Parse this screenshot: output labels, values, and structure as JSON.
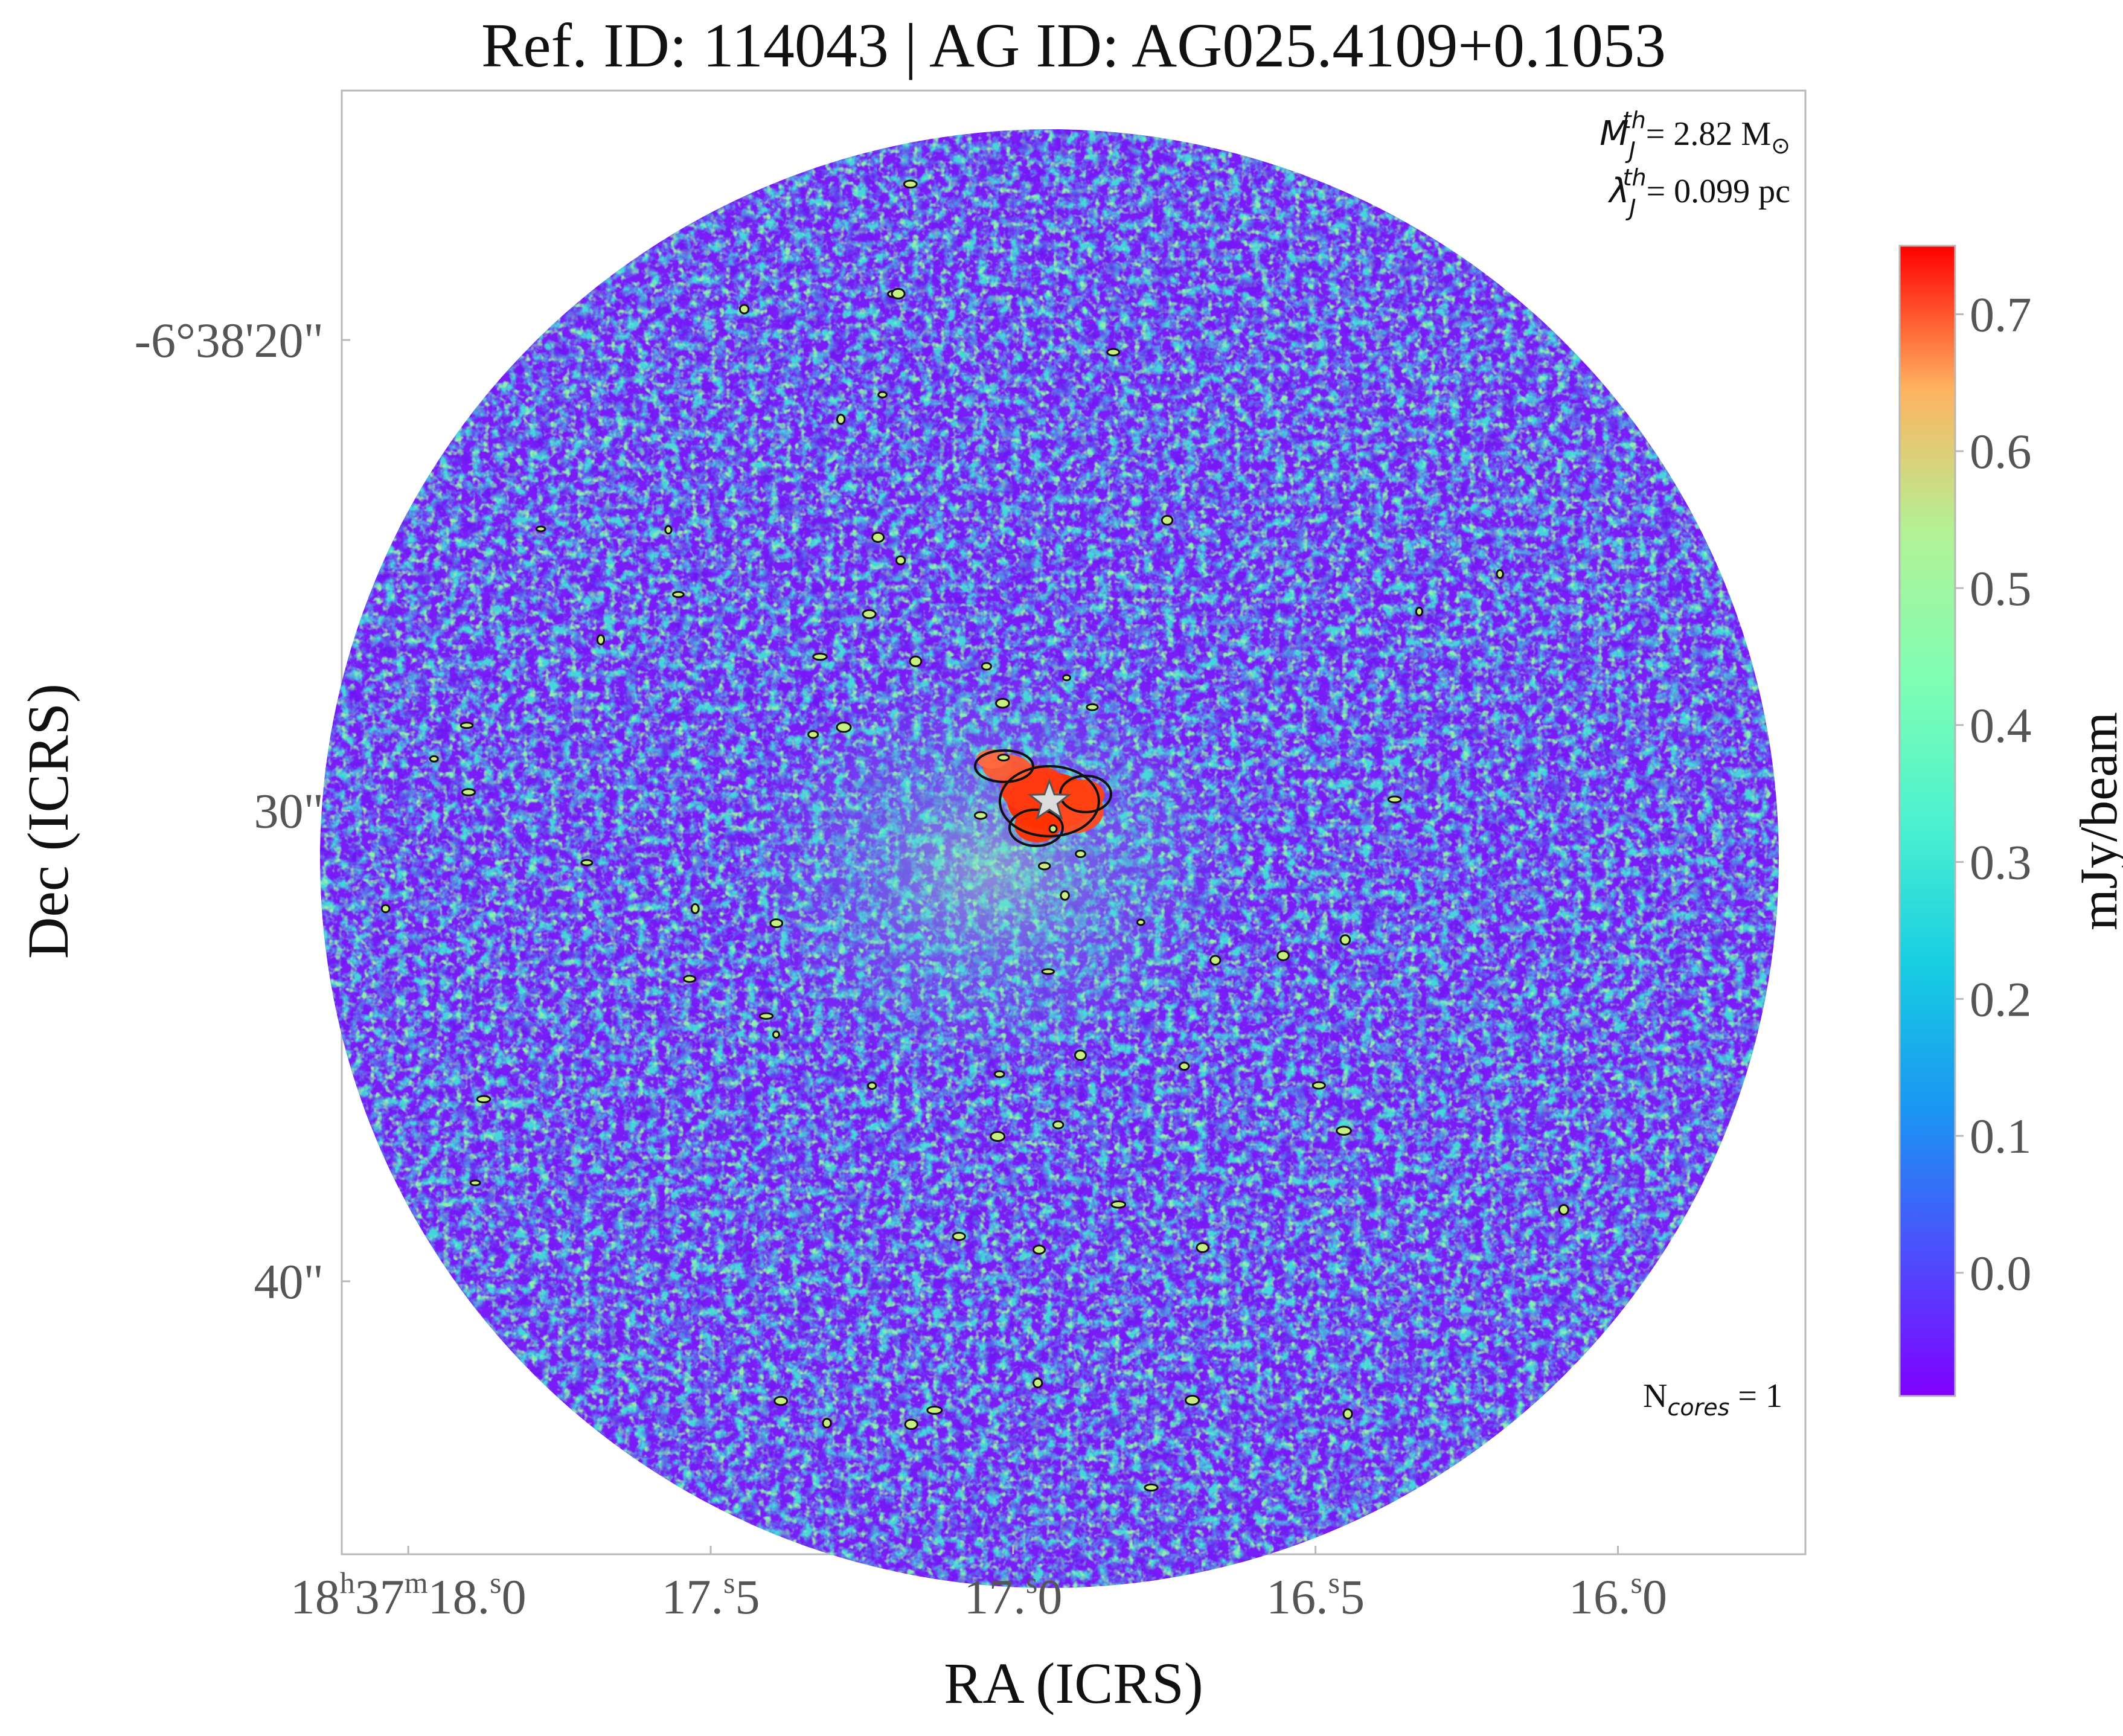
{
  "chart_data": {
    "type": "heatmap",
    "title": "Ref. ID: 114043 | AG ID: AG025.4109+0.1053",
    "xlabel": "RA (ICRS)",
    "ylabel": "Dec (ICRS)",
    "x_ticks": [
      {
        "value": 18.0,
        "h": "18",
        "m": "37",
        "s": "18.0"
      },
      {
        "value": 17.5,
        "h": "",
        "m": "",
        "s": "17.5"
      },
      {
        "value": 17.0,
        "h": "",
        "m": "",
        "s": "17.0"
      },
      {
        "value": 16.5,
        "h": "",
        "m": "",
        "s": "16.5"
      },
      {
        "value": 16.0,
        "h": "",
        "m": "",
        "s": "16.0"
      }
    ],
    "y_ticks": [
      {
        "value": 20,
        "label": "-6°38'20\""
      },
      {
        "value": 30,
        "label": "30\""
      },
      {
        "value": 40,
        "label": "40\""
      }
    ],
    "xlim": [
      18.11,
      15.69
    ],
    "ylim": [
      45.8,
      14.7
    ],
    "colorbar": {
      "label": "mJy/beam",
      "range": [
        -0.09,
        0.75
      ],
      "ticks": [
        "0.0",
        "0.1",
        "0.2",
        "0.3",
        "0.4",
        "0.5",
        "0.6",
        "0.7"
      ],
      "tick_values": [
        0.0,
        0.1,
        0.2,
        0.3,
        0.4,
        0.5,
        0.6,
        0.7
      ],
      "colormap": "rainbow"
    },
    "annotations": {
      "jeans_mass_symbol": "M",
      "jeans_mass_sub": "J",
      "jeans_mass_sup": "th",
      "jeans_mass_value": "= 2.82 M",
      "sun_symbol": "⊙",
      "jeans_length_symbol": "λ",
      "jeans_length_sub": "J",
      "jeans_length_sup": "th",
      "jeans_length_value": "= 0.099 pc",
      "ncores_prefix": "N",
      "ncores_sub": "cores",
      "ncores_value": " = 1"
    },
    "core_marker": {
      "ra": 16.94,
      "dec": 29.8,
      "shape": "star"
    },
    "colors": {
      "low": "#7a1cf7",
      "mid": "#3fe0d5",
      "high": "#ff2a00",
      "frame": "#b8b8b8"
    }
  }
}
